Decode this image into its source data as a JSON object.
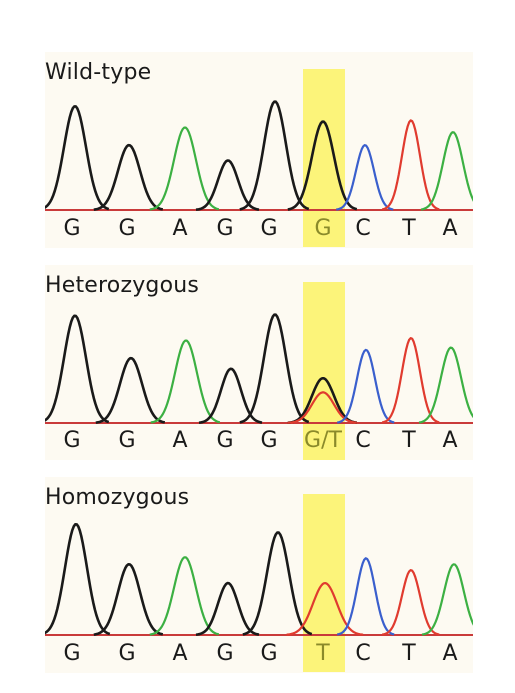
{
  "colors": {
    "background": "#fdfaf2",
    "highlight": "#fcf47a",
    "trace_G": "#1a1a1a",
    "trace_A": "#3cb043",
    "trace_C": "#3a5fcd",
    "trace_T": "#e03b2f",
    "baseline": "#c93a3a"
  },
  "panels": [
    {
      "label": "Wild-type",
      "bases": [
        "G",
        "G",
        "A",
        "G",
        "G",
        "G",
        "C",
        "T",
        "A"
      ],
      "highlight_index": 5,
      "peaks": [
        {
          "base": "G",
          "height": 0.88
        },
        {
          "base": "G",
          "height": 0.55
        },
        {
          "base": "A",
          "height": 0.7
        },
        {
          "base": "G",
          "height": 0.42
        },
        {
          "base": "G",
          "height": 0.92
        },
        {
          "base": "G",
          "height": 0.75
        },
        {
          "base": "C",
          "height": 0.55
        },
        {
          "base": "T",
          "height": 0.76
        },
        {
          "base": "A",
          "height": 0.66
        }
      ]
    },
    {
      "label": "Heterozygous",
      "bases": [
        "G",
        "G",
        "A",
        "G",
        "G",
        "G/T",
        "C",
        "T",
        "A"
      ],
      "highlight_index": 5,
      "peaks": [
        {
          "base": "G",
          "height": 0.91
        },
        {
          "base": "G",
          "height": 0.55
        },
        {
          "base": "A",
          "height": 0.7
        },
        {
          "base": "G",
          "height": 0.46
        },
        {
          "base": "G",
          "height": 0.92
        },
        {
          "base": "G",
          "height": 0.38
        },
        {
          "base": "T",
          "height": 0.26
        },
        {
          "base": "C",
          "height": 0.62
        },
        {
          "base": "T",
          "height": 0.72
        },
        {
          "base": "A",
          "height": 0.64
        }
      ]
    },
    {
      "label": "Homozygous",
      "bases": [
        "G",
        "G",
        "A",
        "G",
        "G",
        "T",
        "C",
        "T",
        "A"
      ],
      "highlight_index": 5,
      "peaks": [
        {
          "base": "G",
          "height": 0.94
        },
        {
          "base": "G",
          "height": 0.6
        },
        {
          "base": "A",
          "height": 0.66
        },
        {
          "base": "G",
          "height": 0.44
        },
        {
          "base": "G",
          "height": 0.87
        },
        {
          "base": "T",
          "height": 0.44
        },
        {
          "base": "C",
          "height": 0.65
        },
        {
          "base": "T",
          "height": 0.55
        },
        {
          "base": "A",
          "height": 0.6
        }
      ]
    }
  ]
}
